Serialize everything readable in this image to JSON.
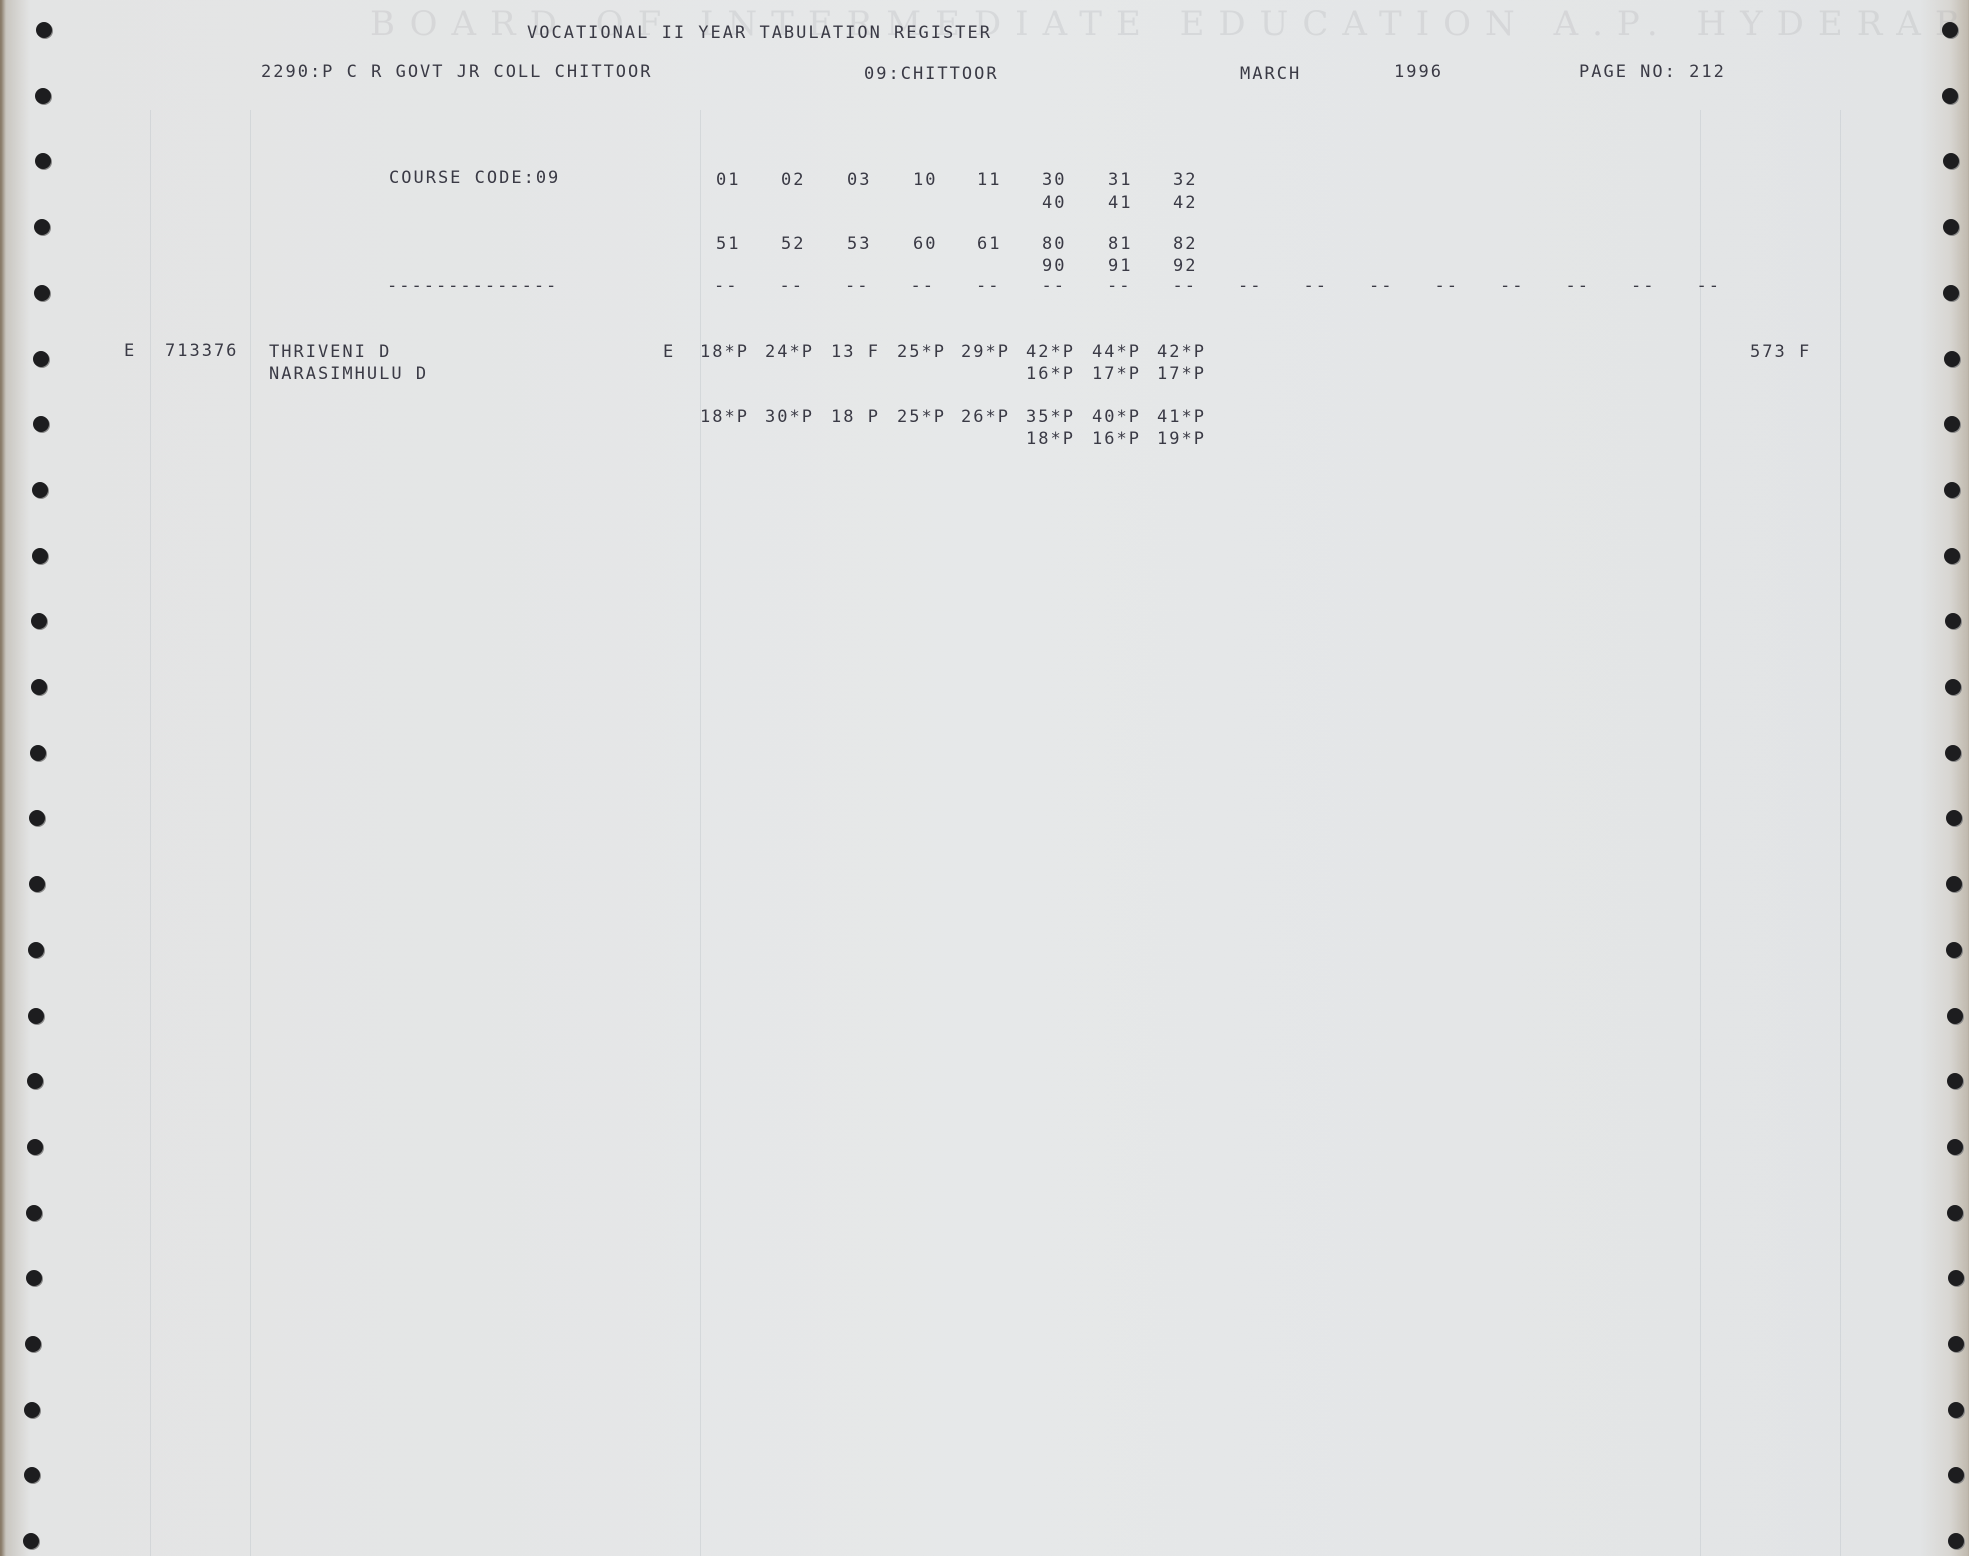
{
  "header": {
    "title": "VOCATIONAL II YEAR TABULATION REGISTER",
    "college": "2290:P C R GOVT JR COLL CHITTOOR",
    "district": "09:CHITTOOR",
    "month": "MARCH",
    "year": "1996",
    "page": "PAGE NO: 212"
  },
  "watermark": "BOARD OF INTERMEDIATE EDUCATION A.P. HYDERABAD",
  "course": {
    "label": "COURSE CODE:09",
    "codes_row1": [
      "01",
      "02",
      "03",
      "10",
      "11",
      "30",
      "31",
      "32"
    ],
    "codes_row1b": [
      "40",
      "41",
      "42"
    ],
    "codes_row2": [
      "51",
      "52",
      "53",
      "60",
      "61",
      "80",
      "81",
      "82"
    ],
    "codes_row2b": [
      "90",
      "91",
      "92"
    ],
    "underline": "--------------",
    "dash": "--"
  },
  "student": {
    "flag": "E",
    "roll": "713376",
    "name": "THRIVENI D",
    "father": "NARASIMHULU D",
    "medium": "E",
    "marks_row1": [
      "18*P",
      "24*P",
      "13 F",
      "25*P",
      "29*P",
      "42*P",
      "44*P",
      "42*P"
    ],
    "marks_row1b": [
      "16*P",
      "17*P",
      "17*P"
    ],
    "marks_row2": [
      "18*P",
      "30*P",
      "18 P",
      "25*P",
      "26*P",
      "35*P",
      "40*P",
      "41*P"
    ],
    "marks_row2b": [
      "18*P",
      "16*P",
      "19*P"
    ],
    "total": "573 F"
  }
}
